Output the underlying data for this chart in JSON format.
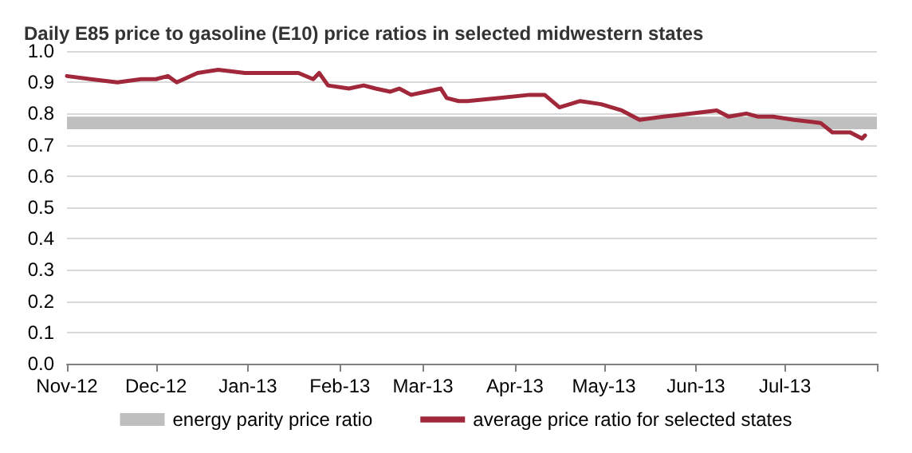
{
  "chart_data": {
    "type": "line",
    "title": "Daily E85 price to gasoline (E10) price ratios in selected midwestern states",
    "xlim": [
      "2012-11-01",
      "2013-08-01"
    ],
    "xticks": [
      {
        "value": "2012-11-01",
        "label": "Nov-12"
      },
      {
        "value": "2012-12-01",
        "label": "Dec-12"
      },
      {
        "value": "2013-01-01",
        "label": "Jan-13"
      },
      {
        "value": "2013-02-01",
        "label": "Feb-13"
      },
      {
        "value": "2013-03-01",
        "label": "Mar-13"
      },
      {
        "value": "2013-04-01",
        "label": "Apr-13"
      },
      {
        "value": "2013-05-01",
        "label": "May-13"
      },
      {
        "value": "2013-06-01",
        "label": "Jun-13"
      },
      {
        "value": "2013-07-01",
        "label": "Jul-13"
      },
      {
        "value": "2013-08-01",
        "label": null
      }
    ],
    "ylim": [
      0,
      1
    ],
    "yticks": [
      {
        "value": 0,
        "label": "0.0"
      },
      {
        "value": 0.1,
        "label": "0.1"
      },
      {
        "value": 0.2,
        "label": "0.2"
      },
      {
        "value": 0.3,
        "label": "0.3"
      },
      {
        "value": 0.4,
        "label": "0.4"
      },
      {
        "value": 0.5,
        "label": "0.5"
      },
      {
        "value": 0.6,
        "label": "0.6"
      },
      {
        "value": 0.7,
        "label": "0.7"
      },
      {
        "value": 0.8,
        "label": "0.8"
      },
      {
        "value": 0.9,
        "label": "0.9"
      },
      {
        "value": 1,
        "label": "1.0"
      }
    ],
    "grid": "y",
    "legend": "bottom",
    "marker": "none",
    "line_style": "solid",
    "bands": [
      {
        "axis": "y",
        "from": 0.75,
        "to": 0.79,
        "label": "energy parity price ratio",
        "color": "#bfbfbf"
      }
    ],
    "series": [
      {
        "name": "average price ratio for selected states",
        "color": "#a0283a",
        "x": [
          "2012-11-01",
          "2012-11-09",
          "2012-11-18",
          "2012-11-26",
          "2012-12-01",
          "2012-12-05",
          "2012-12-08",
          "2012-12-15",
          "2012-12-22",
          "2012-12-31",
          "2013-01-09",
          "2013-01-18",
          "2013-01-23",
          "2013-01-25",
          "2013-01-28",
          "2013-02-04",
          "2013-02-09",
          "2013-02-13",
          "2013-02-18",
          "2013-02-21",
          "2013-02-25",
          "2013-03-02",
          "2013-03-07",
          "2013-03-09",
          "2013-03-13",
          "2013-03-16",
          "2013-03-27",
          "2013-04-06",
          "2013-04-11",
          "2013-04-16",
          "2013-04-23",
          "2013-04-30",
          "2013-05-07",
          "2013-05-13",
          "2013-05-21",
          "2013-05-30",
          "2013-06-08",
          "2013-06-12",
          "2013-06-18",
          "2013-06-22",
          "2013-06-27",
          "2013-07-04",
          "2013-07-13",
          "2013-07-17",
          "2013-07-23",
          "2013-07-27",
          "2013-07-28"
        ],
        "values": [
          0.92,
          0.91,
          0.9,
          0.91,
          0.91,
          0.92,
          0.9,
          0.93,
          0.94,
          0.93,
          0.93,
          0.93,
          0.91,
          0.93,
          0.89,
          0.88,
          0.89,
          0.88,
          0.87,
          0.88,
          0.86,
          0.87,
          0.88,
          0.85,
          0.84,
          0.84,
          0.85,
          0.86,
          0.86,
          0.82,
          0.84,
          0.83,
          0.81,
          0.78,
          0.79,
          0.8,
          0.81,
          0.79,
          0.8,
          0.79,
          0.79,
          0.78,
          0.77,
          0.74,
          0.74,
          0.72,
          0.73
        ]
      }
    ]
  }
}
